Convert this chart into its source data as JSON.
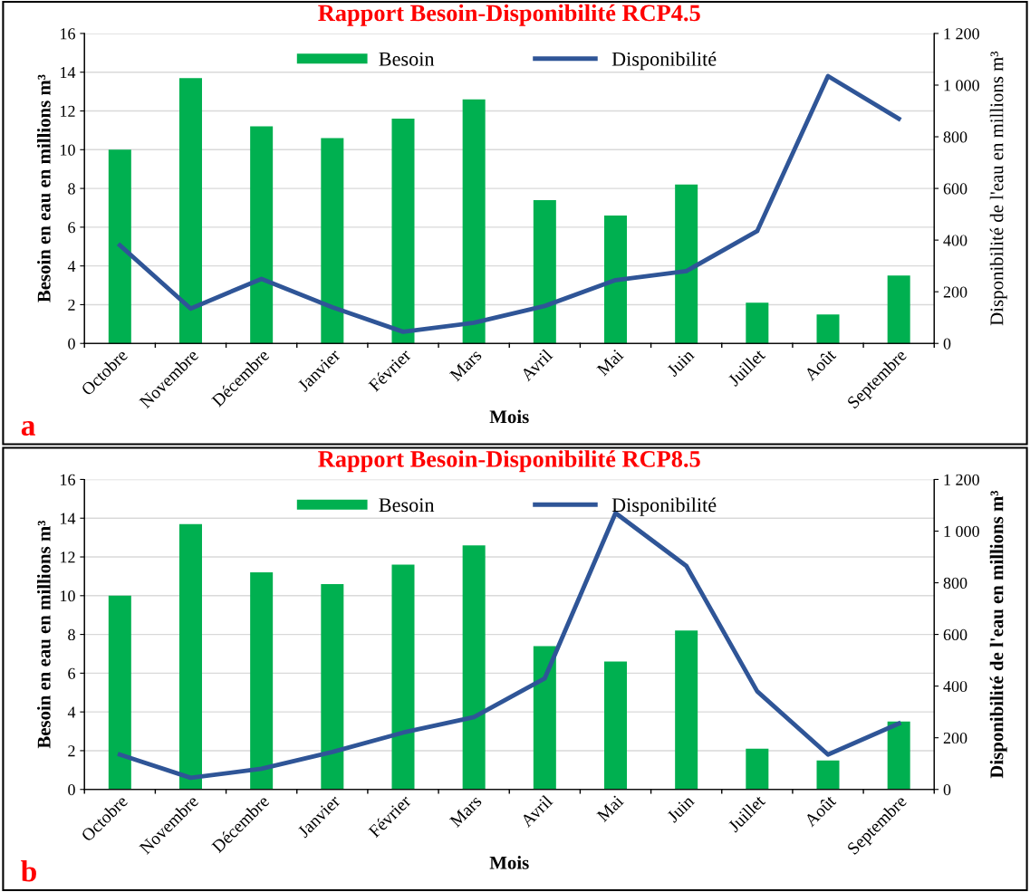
{
  "chart_data": [
    {
      "type": "bar",
      "title": "Rapport Besoin-Disponibilité RCP4.5",
      "xlabel": "Mois",
      "ylabel": "Besoin en eau en millions m³",
      "y2label": "Disponibilité de l'eau en millions m³",
      "annotations": [
        "a"
      ],
      "categories": [
        "Octobre",
        "Novembre",
        "Décembre",
        "Janvier",
        "Février",
        "Mars",
        "Avril",
        "Mai",
        "Juin",
        "Juillet",
        "Août",
        "Septembre"
      ],
      "series": [
        {
          "name": "Besoin",
          "color": "#00b050",
          "values": [
            10.0,
            13.7,
            11.2,
            10.6,
            11.6,
            12.6,
            7.4,
            6.6,
            8.2,
            2.1,
            1.5,
            3.5
          ]
        },
        {
          "name": "Disponibilité",
          "type": "line",
          "axis": "y2",
          "color": "#2f5597",
          "values": [
            380,
            135,
            250,
            140,
            45,
            80,
            145,
            245,
            280,
            435,
            1035,
            870
          ]
        }
      ],
      "ylim": [
        0,
        16
      ],
      "yticks": [
        0,
        2,
        4,
        6,
        8,
        10,
        12,
        14,
        16
      ],
      "y2lim": [
        0,
        1200
      ],
      "y2ticks": [
        0,
        200,
        400,
        600,
        800,
        1000,
        {
          "value": 1200,
          "label": "1 200"
        }
      ],
      "grid": "y",
      "legend": "top",
      "marker": "none",
      "line_style": "solid"
    },
    {
      "type": "bar",
      "title": "Rapport Besoin-Disponibilité RCP8.5",
      "xlabel": "Mois",
      "ylabel": "Besoin en eau en millions m³",
      "y2label": "Disponibilité de l'eau en millions m³",
      "annotations": [
        "b"
      ],
      "categories": [
        "Octobre",
        "Novembre",
        "Décembre",
        "Janvier",
        "Février",
        "Mars",
        "Avril",
        "Mai",
        "Juin",
        "Juillet",
        "Août",
        "Septembre"
      ],
      "series": [
        {
          "name": "Besoin",
          "color": "#00b050",
          "values": [
            10.0,
            13.7,
            11.2,
            10.6,
            11.6,
            12.6,
            7.4,
            6.6,
            8.2,
            2.1,
            1.5,
            3.5
          ]
        },
        {
          "name": "Disponibilité",
          "type": "line",
          "axis": "y2",
          "color": "#2f5597",
          "values": [
            135,
            45,
            80,
            145,
            220,
            280,
            430,
            1070,
            865,
            380,
            135,
            255
          ]
        }
      ],
      "ylim": [
        0,
        16
      ],
      "yticks": [
        0,
        2,
        4,
        6,
        8,
        10,
        12,
        14,
        16
      ],
      "y2lim": [
        0,
        1200
      ],
      "y2ticks": [
        0,
        200,
        400,
        600,
        800,
        1000,
        {
          "value": 1200,
          "label": "1 200"
        }
      ],
      "grid": "y",
      "legend": "top",
      "marker": "none",
      "line_style": "solid"
    }
  ]
}
